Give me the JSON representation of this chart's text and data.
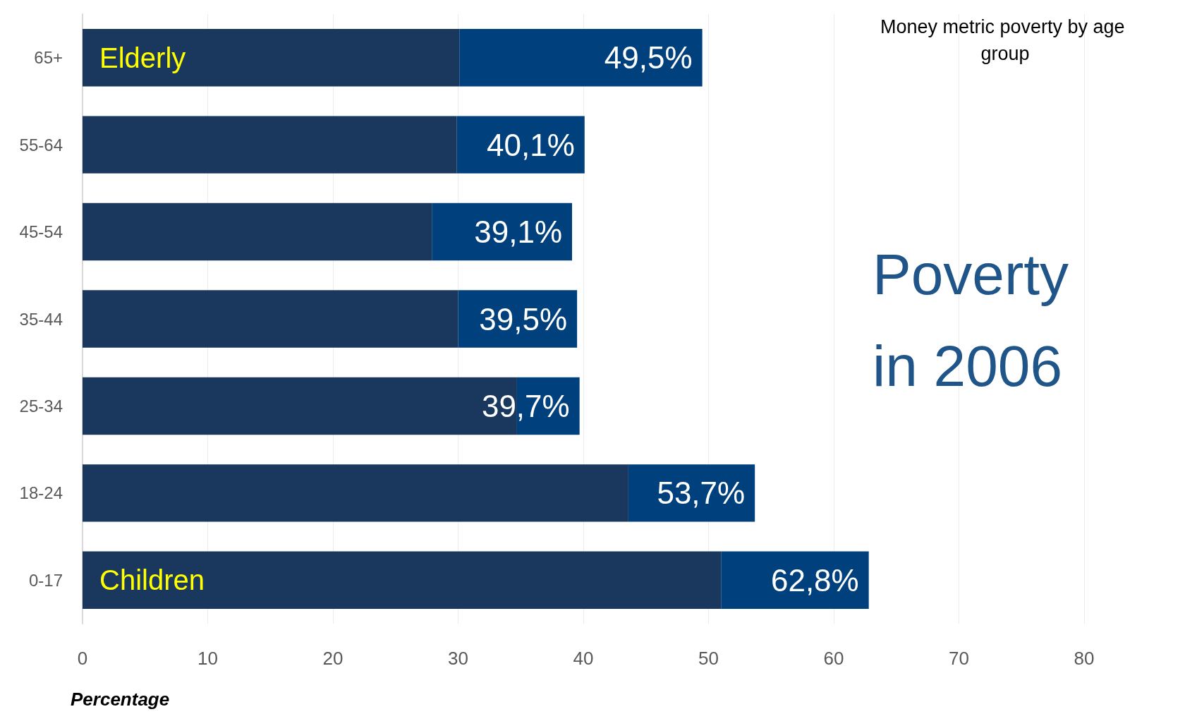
{
  "chart_data": {
    "type": "bar",
    "orientation": "horizontal",
    "stacked": true,
    "title": "Money metric poverty by age group",
    "subtitle": "Poverty in 2006",
    "xlabel": "Percentage",
    "categories": [
      "65+",
      "55-64",
      "45-54",
      "35-44",
      "25-34",
      "18-24",
      "0-17"
    ],
    "series": [
      {
        "color": "#1a375e",
        "values": [
          30.1,
          29.9,
          27.9,
          30.0,
          34.7,
          43.6,
          51.0
        ]
      },
      {
        "color": "#00407c",
        "values": [
          19.4,
          10.2,
          11.2,
          9.5,
          5.0,
          10.1,
          11.8
        ]
      }
    ],
    "totals": [
      "49,5%",
      "40,1%",
      "39,1%",
      "39,5%",
      "39,7%",
      "53,7%",
      "62,8%"
    ],
    "annotations": [
      "Elderly",
      "Children"
    ],
    "xlim": [
      0,
      80
    ],
    "xticks": [
      0,
      10,
      20,
      30,
      40,
      50,
      60,
      70,
      80
    ],
    "grid": "x"
  }
}
